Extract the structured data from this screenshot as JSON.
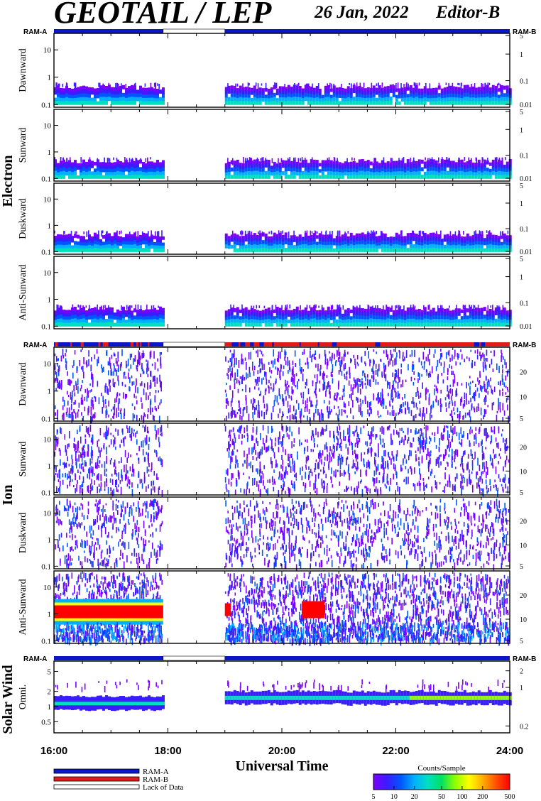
{
  "header": {
    "title": "GEOTAIL / LEP",
    "date": "26 Jan, 2022",
    "editor": "Editor-B"
  },
  "colors": {
    "ram_a": "#0b16c8",
    "ram_b": "#e01b1b",
    "spectrogram": [
      "#7a00ff",
      "#3a1cff",
      "#0055ff",
      "#00b0ff",
      "#00e0c0",
      "#00e060",
      "#90ff00",
      "#ffff00",
      "#ffb000",
      "#ff5000",
      "#ff0000"
    ]
  },
  "chart_data": {
    "type": "heatmap",
    "x_axis": {
      "label": "Universal Time",
      "range": [
        "16:00",
        "24:00"
      ],
      "tick_labels": [
        "16:00",
        "18:00",
        "20:00",
        "22:00",
        "24:00"
      ]
    },
    "data_gap": [
      "17:55",
      "19:00"
    ],
    "groups": [
      {
        "name": "Electron",
        "ram_labels": [
          "RAM-A",
          "RAM-B"
        ],
        "ram_status": [
          {
            "from": "16:00",
            "to": "17:55",
            "state": "RAM-A"
          },
          {
            "from": "17:55",
            "to": "19:00",
            "state": "Lack of Data"
          },
          {
            "from": "19:00",
            "to": "24:00",
            "state": "RAM-A"
          }
        ],
        "panels": [
          {
            "name": "Dawnward",
            "left_ticks": [
              "10",
              "1",
              "0.1"
            ],
            "right_ticks": [
              "5",
              "1",
              "0.1",
              "0.01"
            ]
          },
          {
            "name": "Sunward",
            "left_ticks": [
              "10",
              "1",
              "0.1"
            ],
            "right_ticks": [
              "5",
              "1",
              "0.1",
              "0.01"
            ]
          },
          {
            "name": "Duskward",
            "left_ticks": [
              "10",
              "1",
              "0.1"
            ],
            "right_ticks": [
              "5",
              "1",
              "0.1",
              "0.01"
            ]
          },
          {
            "name": "Anti-Sunward",
            "left_ticks": [
              "10",
              "1",
              "0.1"
            ],
            "right_ticks": [
              "5",
              "1",
              "0.1",
              "0.01"
            ]
          }
        ]
      },
      {
        "name": "Ion",
        "ram_labels": [
          "RAM-A",
          "RAM-B"
        ],
        "ram_status": [
          {
            "from": "16:00",
            "to": "17:55",
            "state": "RAM-A"
          },
          {
            "from": "17:55",
            "to": "19:00",
            "state": "Lack of Data"
          },
          {
            "from": "19:00",
            "to": "24:00",
            "state": "RAM-B"
          }
        ],
        "panels": [
          {
            "name": "Dawnward",
            "left_ticks": [
              "10",
              "1",
              "0.1"
            ],
            "right_ticks": [
              "20",
              "10",
              "5"
            ]
          },
          {
            "name": "Sunward",
            "left_ticks": [
              "10",
              "1",
              "0.1"
            ],
            "right_ticks": [
              "20",
              "10",
              "5"
            ]
          },
          {
            "name": "Duskward",
            "left_ticks": [
              "10",
              "1",
              "0.1"
            ],
            "right_ticks": [
              "20",
              "10",
              "5"
            ]
          },
          {
            "name": "Anti-Sunward",
            "left_ticks": [
              "10",
              "1",
              "0.1"
            ],
            "right_ticks": [
              "20",
              "10",
              "5"
            ]
          }
        ]
      },
      {
        "name": "Solar Wind",
        "ram_labels": [
          "RAM-A",
          "RAM-B"
        ],
        "ram_status": [
          {
            "from": "16:00",
            "to": "17:55",
            "state": "RAM-A"
          },
          {
            "from": "17:55",
            "to": "19:00",
            "state": "Lack of Data"
          },
          {
            "from": "19:00",
            "to": "24:00",
            "state": "RAM-A"
          }
        ],
        "panels": [
          {
            "name": "Omni.",
            "left_ticks": [
              "5",
              "2",
              "1",
              "0.5"
            ],
            "right_ticks": [
              "2",
              "1",
              "0.2"
            ]
          }
        ]
      }
    ],
    "legend": {
      "items": [
        "RAM-A",
        "RAM-B",
        "Lack of Data"
      ],
      "colorbar_title": "Counts/Sample",
      "colorbar_ticks": [
        "5",
        "10",
        "20",
        "50",
        "100",
        "200",
        "500"
      ]
    }
  }
}
